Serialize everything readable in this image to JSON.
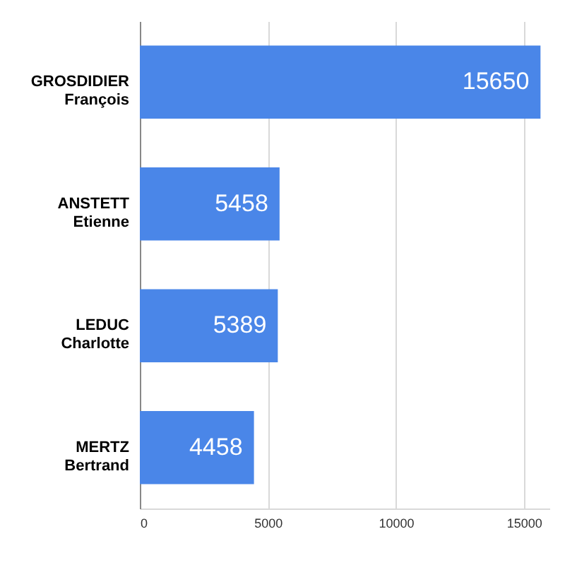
{
  "chart_data": {
    "type": "bar",
    "orientation": "horizontal",
    "categories": [
      "GROSDIDIER François",
      "ANSTETT Etienne",
      "LEDUC Charlotte",
      "MERTZ Bertrand"
    ],
    "values": [
      15650,
      5458,
      5389,
      4458
    ],
    "color": "#4a86e8",
    "xlim": [
      0,
      16000
    ],
    "xticks": [
      0,
      5000,
      10000,
      15000
    ],
    "grid": "x",
    "data_labels": true
  }
}
